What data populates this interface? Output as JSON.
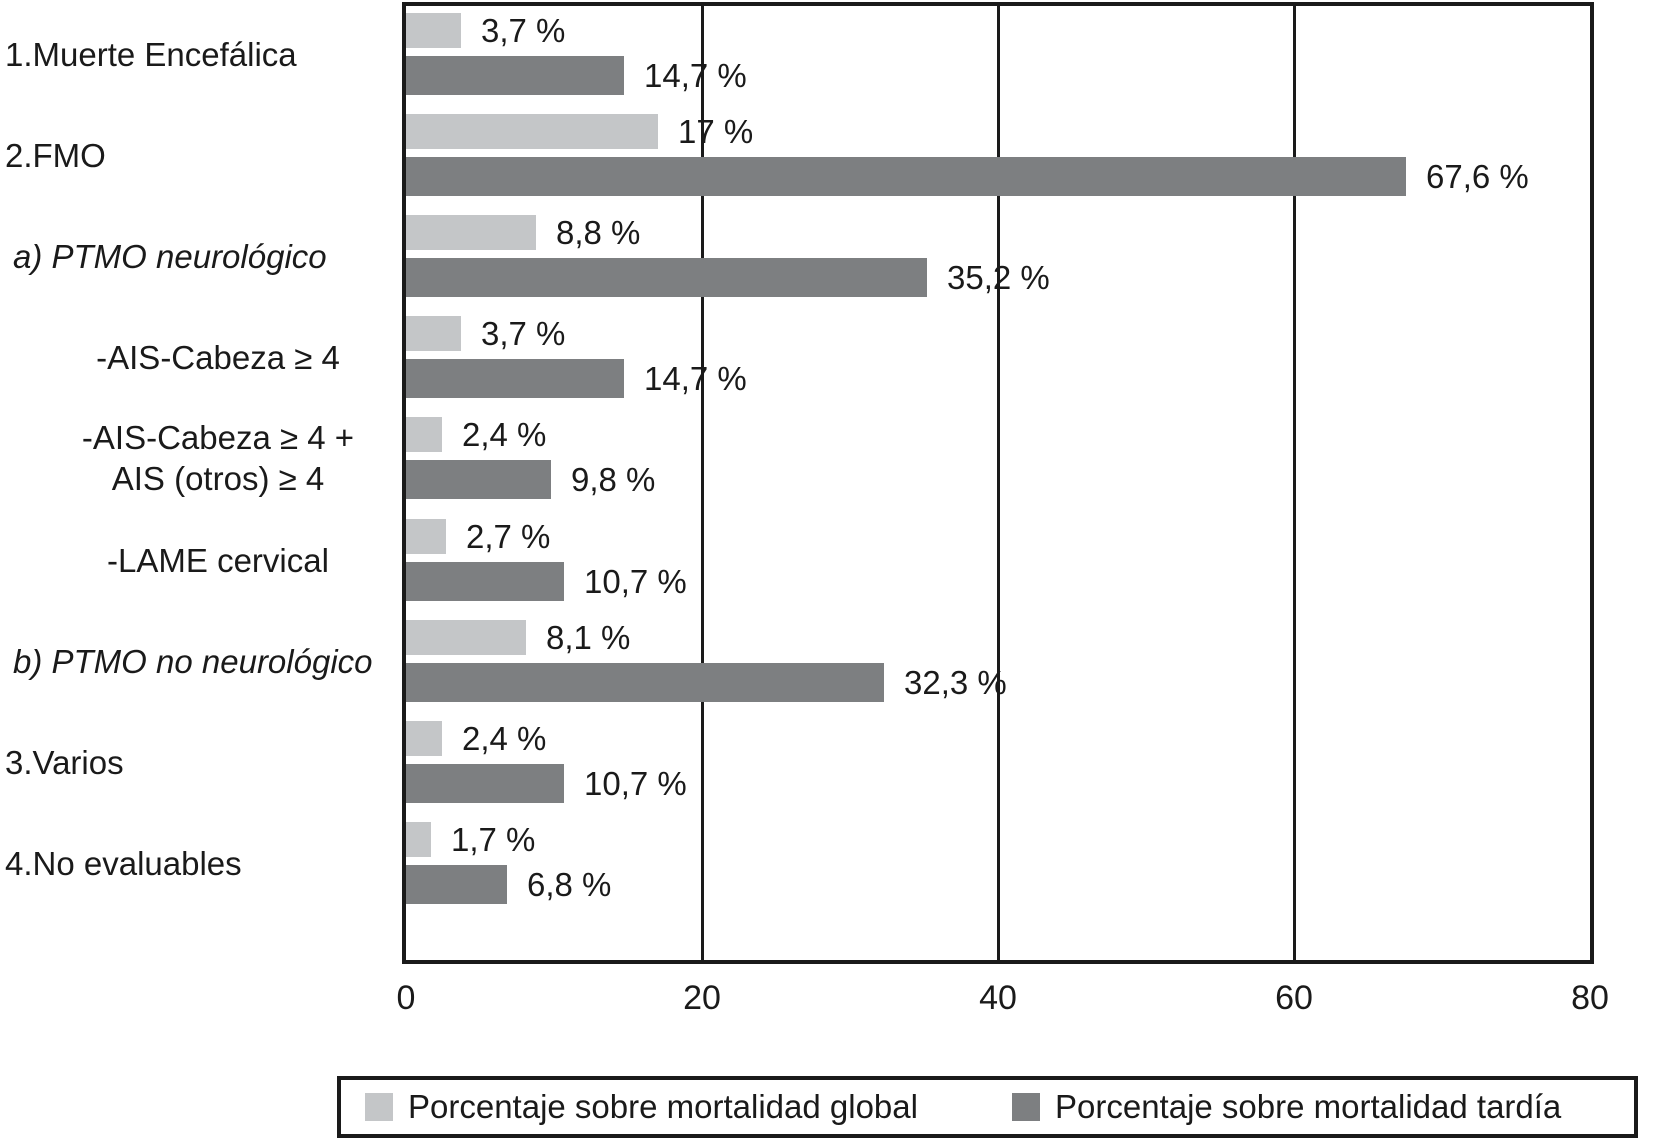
{
  "chart_data": {
    "type": "bar",
    "orientation": "horizontal",
    "grid": true,
    "legend_position": "bottom",
    "x_axis": {
      "min": 0,
      "max": 80,
      "ticks": [
        "0",
        "20",
        "40",
        "60",
        "80"
      ],
      "gridlines_at": [
        20,
        40,
        60
      ]
    },
    "categories": [
      {
        "style": "numbered",
        "lines": [
          "1.Muerte Encefálica"
        ]
      },
      {
        "style": "numbered",
        "lines": [
          "2.FMO"
        ]
      },
      {
        "style": "lettered",
        "lines": [
          "a) PTMO neurológico"
        ]
      },
      {
        "style": "sub",
        "lines": [
          "-AIS-Cabeza ≥ 4"
        ]
      },
      {
        "style": "sub",
        "lines": [
          "-AIS-Cabeza ≥ 4 +",
          "AIS (otros) ≥ 4"
        ]
      },
      {
        "style": "sub",
        "lines": [
          "-LAME cervical"
        ]
      },
      {
        "style": "lettered",
        "lines": [
          "b) PTMO no neurológico"
        ]
      },
      {
        "style": "numbered",
        "lines": [
          "3.Varios"
        ]
      },
      {
        "style": "numbered",
        "lines": [
          "4.No evaluables"
        ]
      }
    ],
    "series": [
      {
        "name": "Porcentaje sobre mortalidad global",
        "color": "#c4c6c8",
        "values": [
          3.7,
          17,
          8.8,
          3.7,
          2.4,
          2.7,
          8.1,
          2.4,
          1.7
        ],
        "value_labels": [
          "3,7 %",
          "17 %",
          "8,8 %",
          "3,7 %",
          "2,4 %",
          "2,7 %",
          "8,1 %",
          "2,4 %",
          "1,7 %"
        ]
      },
      {
        "name": "Porcentaje sobre mortalidad tardía",
        "color": "#7d7f81",
        "values": [
          14.7,
          67.6,
          35.2,
          14.7,
          9.8,
          10.7,
          32.3,
          10.7,
          6.8
        ],
        "value_labels": [
          "14,7 %",
          "67,6 %",
          "35,2 %",
          "14,7 %",
          "9,8 %",
          "10,7 %",
          "32,3 %",
          "10,7 %",
          "6,8 %"
        ]
      }
    ],
    "frame_color": "#1a1a1a",
    "text_color": "#1a1a1a"
  }
}
